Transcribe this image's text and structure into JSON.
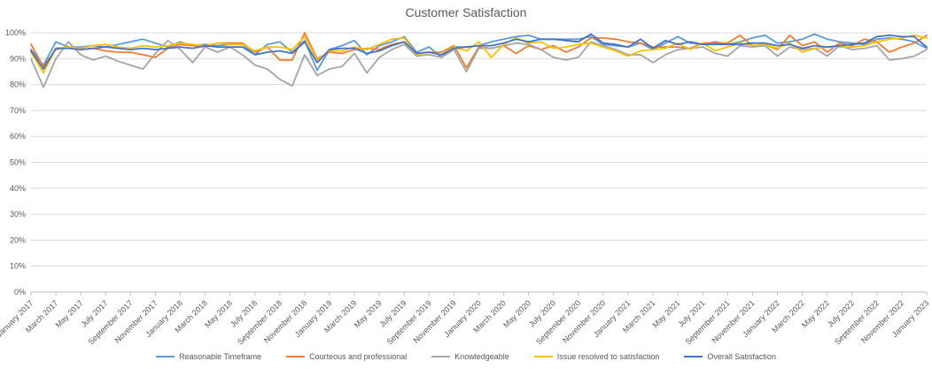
{
  "chart_data": {
    "type": "line",
    "title": "Customer Satisfaction",
    "xlabel": "",
    "ylabel": "",
    "ylim": [
      0,
      100
    ],
    "y_tick_step": 10,
    "y_tick_labels": [
      "0%",
      "10%",
      "20%",
      "30%",
      "40%",
      "50%",
      "60%",
      "70%",
      "80%",
      "90%",
      "100%"
    ],
    "grid": "horizontal",
    "legend_position": "bottom",
    "x_label_every_n_points": 2,
    "x_tick_labels": [
      "January 2017",
      "March 2017",
      "May 2017",
      "July 2017",
      "September 2017",
      "November 2017",
      "January 2018",
      "March 2018",
      "May 2018",
      "July 2018",
      "September 2018",
      "November 2018",
      "January 2019",
      "March 2019",
      "May 2019",
      "July 2019",
      "September 2019",
      "November 2019",
      "January 2020",
      "March 2020",
      "May 2020",
      "July 2020",
      "September 2020",
      "November 2020",
      "January 2021",
      "March 2021",
      "May 2021",
      "July 2021",
      "September 2021",
      "November 2021",
      "January 2022",
      "March 2022",
      "May 2022",
      "July 2022",
      "September 2022",
      "November 2022",
      "January 2023"
    ],
    "series": [
      {
        "name": "Reasonable Timeframe",
        "color": "#5B9BD5",
        "values": [
          93.5,
          87.5,
          96.5,
          94.5,
          94.5,
          95,
          94.5,
          95.5,
          96.5,
          97.5,
          96,
          94.5,
          96.5,
          95,
          95.5,
          95,
          95.5,
          95.5,
          91.5,
          95.5,
          96.5,
          92.5,
          97,
          85.5,
          93.5,
          95,
          97,
          91.5,
          95,
          96.5,
          98.5,
          92.5,
          94.5,
          90.5,
          94.5,
          94.5,
          95,
          96.5,
          97.5,
          98.5,
          99,
          97.5,
          97.5,
          97.5,
          97.5,
          98.5,
          95.5,
          95,
          94.5,
          96,
          93.5,
          96,
          98.5,
          96,
          95.5,
          96.5,
          95.5,
          96.5,
          98,
          99,
          96,
          96.5,
          97.5,
          99.5,
          97.5,
          96.5,
          96,
          95.5,
          97.5,
          98,
          97.5,
          96.5,
          94
        ]
      },
      {
        "name": "Courteous and professional",
        "color": "#ED7D31",
        "values": [
          95.5,
          87,
          93.5,
          94.5,
          93.5,
          94,
          93,
          92.5,
          92.5,
          91.5,
          90.5,
          94,
          95.5,
          95,
          94.5,
          96,
          96,
          96,
          92.5,
          94.5,
          89.5,
          89.5,
          100,
          90,
          92.5,
          92,
          93.5,
          94,
          93.5,
          95.5,
          96.5,
          92,
          92.5,
          92.5,
          95,
          86.5,
          94.5,
          94,
          95,
          92,
          95,
          93.5,
          95,
          92.5,
          94.5,
          98,
          98,
          97.5,
          96.5,
          96,
          94.5,
          94.5,
          94.5,
          94,
          96,
          96,
          96,
          99,
          95,
          95.5,
          93.5,
          99,
          95,
          96.5,
          92.5,
          96,
          95,
          97.5,
          96.5,
          92.5,
          94.5,
          96,
          99
        ]
      },
      {
        "name": "Knowledgeable",
        "color": "#A5A5A5",
        "values": [
          90,
          79,
          90,
          96.5,
          91.5,
          89.5,
          91,
          89,
          87.5,
          86,
          92,
          97,
          93.5,
          88.5,
          94.5,
          92.5,
          94.5,
          91.5,
          87.5,
          86,
          82,
          79.5,
          91.5,
          83.5,
          86,
          87,
          92,
          84.5,
          90.5,
          93.5,
          95.5,
          91,
          91.5,
          90.5,
          93.5,
          85,
          94,
          94,
          95,
          96,
          95.5,
          93.5,
          90.5,
          89.5,
          90.5,
          96.5,
          95,
          93.5,
          91.5,
          91.5,
          88.5,
          91.5,
          93.5,
          94,
          94.5,
          92,
          91,
          95,
          94.5,
          95,
          91,
          94.5,
          93.5,
          94,
          91,
          95,
          93.5,
          94,
          95,
          89.5,
          90,
          91,
          93.5
        ]
      },
      {
        "name": "Issue resolved to satisfaction",
        "color": "#FFC000",
        "values": [
          92.5,
          84.5,
          94,
          94.5,
          94,
          95,
          95.5,
          94.5,
          94,
          95,
          94.5,
          95,
          96,
          95.5,
          95,
          96,
          95.5,
          95.5,
          93,
          94.5,
          94.5,
          93.5,
          98.5,
          89.5,
          93,
          93,
          94.5,
          93.5,
          95.5,
          97.5,
          98,
          91.5,
          92.5,
          91.5,
          94.5,
          93,
          96.5,
          90.5,
          95.5,
          98,
          96,
          96.5,
          94,
          94.5,
          95.5,
          96,
          94.5,
          93,
          91,
          93,
          93.5,
          94,
          96,
          93.5,
          96,
          93,
          94.5,
          96,
          95,
          95.5,
          94,
          96,
          92.5,
          94,
          94.5,
          94.5,
          94.5,
          95,
          96.5,
          97.5,
          98,
          99,
          98
        ]
      },
      {
        "name": "Overall Satisfaction",
        "color": "#4472C4",
        "values": [
          93,
          86,
          94,
          94,
          93.5,
          94,
          94.5,
          94,
          93.5,
          94,
          93.5,
          94,
          94.5,
          94,
          95,
          94.5,
          94.5,
          94.5,
          91.5,
          92.5,
          93,
          92,
          96.5,
          88.5,
          93.5,
          94,
          94,
          92,
          93,
          95,
          96.5,
          92,
          92.5,
          91.5,
          94,
          94.5,
          95,
          95,
          96,
          97.5,
          96.5,
          97.5,
          97.5,
          97,
          96.5,
          99.5,
          96,
          95.5,
          94.5,
          97.5,
          94,
          97,
          95.5,
          96.5,
          95.5,
          95.5,
          95.5,
          95.5,
          96,
          96,
          95,
          95.5,
          94,
          95,
          94.5,
          95,
          95.5,
          96,
          98.5,
          99,
          98.5,
          98.5,
          94.5
        ]
      }
    ]
  },
  "style": {
    "title_color": "#595959",
    "axis_text_color": "#595959",
    "gridline_color": "#D9D9D9",
    "axis_line_color": "#BFBFBF",
    "background_color": "#FFFFFF"
  }
}
